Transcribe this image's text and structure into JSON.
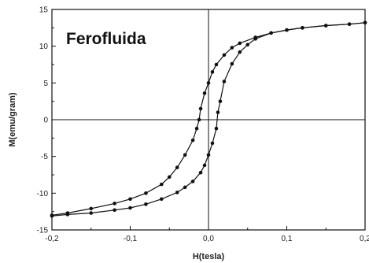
{
  "chart_data": {
    "type": "scatter",
    "title": "Ferofluida",
    "xlabel": "H(tesla)",
    "ylabel": "M(emu/gram)",
    "xlim": [
      -0.2,
      0.2
    ],
    "ylim": [
      -15,
      15
    ],
    "xticks": [
      -0.2,
      -0.1,
      0.0,
      0.1,
      0.2
    ],
    "xtick_labels": [
      "-0,2",
      "-0,1",
      "0,0",
      "0,1",
      "0,2"
    ],
    "yticks": [
      -15,
      -10,
      -5,
      0,
      5,
      10,
      15
    ],
    "ytick_labels": [
      "-15",
      "-10",
      "-5",
      "0",
      "5",
      "10",
      "15"
    ],
    "reference_lines": {
      "x": 0,
      "y": 0
    },
    "grid": false,
    "legend": "none",
    "marker_color": "#111111",
    "series": [
      {
        "x": [
          -0.2,
          -0.18,
          -0.15,
          -0.12,
          -0.1,
          -0.08,
          -0.06,
          -0.05,
          -0.04,
          -0.03,
          -0.02,
          -0.015,
          -0.012,
          -0.01,
          -0.005,
          0.0,
          0.005,
          0.01,
          0.02,
          0.03,
          0.04,
          0.06,
          0.08,
          0.1,
          0.12,
          0.15,
          0.18,
          0.2
        ],
        "y": [
          -13.0,
          -12.7,
          -12.1,
          -11.4,
          -10.8,
          -10.0,
          -8.8,
          -7.8,
          -6.5,
          -4.8,
          -2.8,
          -1.2,
          0.0,
          1.5,
          3.6,
          5.0,
          6.5,
          7.5,
          8.8,
          9.8,
          10.4,
          11.2,
          11.8,
          12.2,
          12.5,
          12.8,
          13.0,
          13.2
        ]
      },
      {
        "x": [
          0.2,
          0.18,
          0.15,
          0.12,
          0.1,
          0.08,
          0.06,
          0.05,
          0.04,
          0.03,
          0.02,
          0.015,
          0.012,
          0.01,
          0.005,
          0.0,
          -0.005,
          -0.01,
          -0.02,
          -0.03,
          -0.04,
          -0.06,
          -0.08,
          -0.1,
          -0.12,
          -0.15,
          -0.18,
          -0.2
        ],
        "y": [
          13.2,
          13.0,
          12.8,
          12.5,
          12.2,
          11.8,
          11.0,
          10.2,
          9.2,
          7.6,
          5.2,
          2.5,
          1.0,
          -1.2,
          -3.2,
          -4.8,
          -6.2,
          -7.2,
          -8.4,
          -9.2,
          -9.9,
          -10.8,
          -11.5,
          -12.0,
          -12.3,
          -12.7,
          -12.9,
          -13.1
        ]
      }
    ]
  }
}
